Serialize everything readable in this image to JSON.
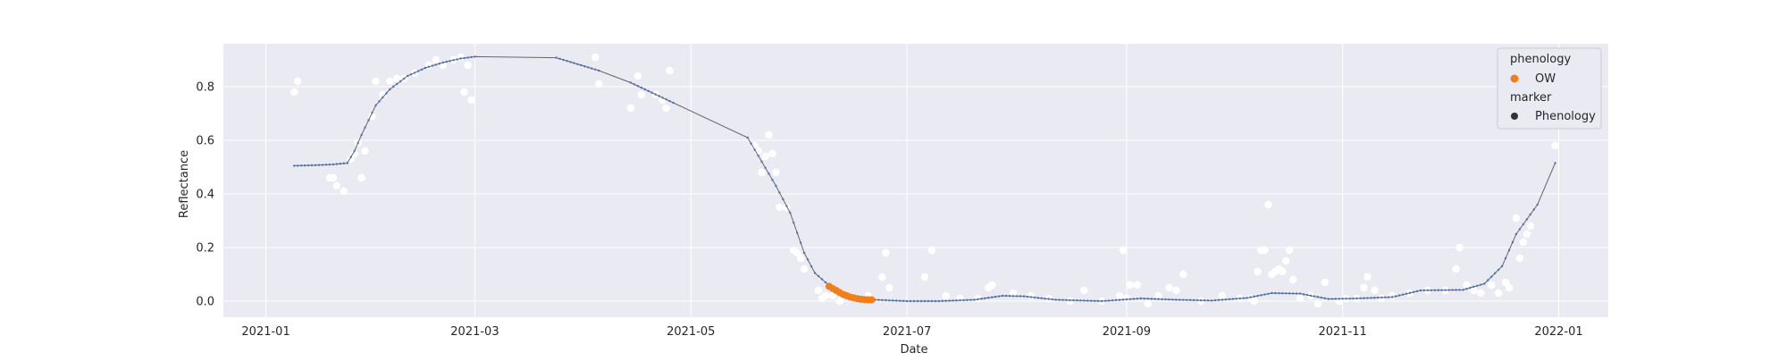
{
  "chart_data": {
    "type": "scatter",
    "xlabel": "Date",
    "ylabel": "Reflectance",
    "xlim": [
      "2020-12-20",
      "2022-01-15"
    ],
    "ylim": [
      -0.06,
      0.96
    ],
    "x_ticks": [
      "2021-01",
      "2021-03",
      "2021-05",
      "2021-07",
      "2021-09",
      "2021-11",
      "2022-01"
    ],
    "y_ticks": [
      "0.0",
      "0.2",
      "0.4",
      "0.6",
      "0.8"
    ],
    "y_tick_values": [
      0.0,
      0.2,
      0.4,
      0.6,
      0.8
    ],
    "grid": true,
    "legend_position": "top-right",
    "legend": {
      "title_1": "phenology",
      "entry_1": "OW",
      "title_2": "marker",
      "entry_2": "Phenology"
    },
    "colors": {
      "background": "#eaeaf2",
      "grid": "#ffffff",
      "raw_points": "#ffffff",
      "fit_line": "#666666",
      "fit_markers": "#4c72b0",
      "ow": "#ee7f1c",
      "legend_marker": "#333333"
    },
    "series": [
      {
        "id": "observations",
        "role": "raw reflectance observations",
        "points": [
          [
            "2021-01-09",
            0.78
          ],
          [
            "2021-01-10",
            0.82
          ],
          [
            "2021-01-19",
            0.46
          ],
          [
            "2021-01-20",
            0.46
          ],
          [
            "2021-01-21",
            0.43
          ],
          [
            "2021-01-23",
            0.41
          ],
          [
            "2021-01-25",
            0.53
          ],
          [
            "2021-01-26",
            0.55
          ],
          [
            "2021-01-27",
            0.59
          ],
          [
            "2021-01-28",
            0.46
          ],
          [
            "2021-01-29",
            0.56
          ],
          [
            "2021-01-31",
            0.69
          ],
          [
            "2021-02-01",
            0.82
          ],
          [
            "2021-02-03",
            0.77
          ],
          [
            "2021-02-05",
            0.82
          ],
          [
            "2021-02-07",
            0.83
          ],
          [
            "2021-02-09",
            0.83
          ],
          [
            "2021-02-12",
            0.85
          ],
          [
            "2021-02-16",
            0.88
          ],
          [
            "2021-02-18",
            0.9
          ],
          [
            "2021-02-20",
            0.88
          ],
          [
            "2021-02-23",
            0.9
          ],
          [
            "2021-02-25",
            0.91
          ],
          [
            "2021-02-26",
            0.78
          ],
          [
            "2021-02-27",
            0.88
          ],
          [
            "2021-02-28",
            0.75
          ],
          [
            "2021-04-04",
            0.91
          ],
          [
            "2021-04-05",
            0.81
          ],
          [
            "2021-04-14",
            0.72
          ],
          [
            "2021-04-16",
            0.84
          ],
          [
            "2021-04-17",
            0.77
          ],
          [
            "2021-04-21",
            0.77
          ],
          [
            "2021-04-23",
            0.75
          ],
          [
            "2021-04-24",
            0.72
          ],
          [
            "2021-04-25",
            0.86
          ],
          [
            "2021-05-19",
            0.58
          ],
          [
            "2021-05-20",
            0.56
          ],
          [
            "2021-05-21",
            0.48
          ],
          [
            "2021-05-22",
            0.54
          ],
          [
            "2021-05-23",
            0.62
          ],
          [
            "2021-05-24",
            0.55
          ],
          [
            "2021-05-25",
            0.48
          ],
          [
            "2021-05-26",
            0.35
          ],
          [
            "2021-05-28",
            0.35
          ],
          [
            "2021-05-30",
            0.19
          ],
          [
            "2021-05-31",
            0.18
          ],
          [
            "2021-06-01",
            0.16
          ],
          [
            "2021-06-02",
            0.12
          ],
          [
            "2021-06-06",
            0.04
          ],
          [
            "2021-06-07",
            0.01
          ],
          [
            "2021-06-08",
            0.02
          ],
          [
            "2021-06-10",
            0.02
          ],
          [
            "2021-06-12",
            0.0
          ],
          [
            "2021-06-20",
            0.02
          ],
          [
            "2021-06-24",
            0.09
          ],
          [
            "2021-06-25",
            0.18
          ],
          [
            "2021-06-26",
            0.05
          ],
          [
            "2021-07-06",
            0.09
          ],
          [
            "2021-07-08",
            0.19
          ],
          [
            "2021-07-12",
            0.02
          ],
          [
            "2021-07-16",
            0.01
          ],
          [
            "2021-07-21",
            0.01
          ],
          [
            "2021-07-24",
            0.05
          ],
          [
            "2021-07-25",
            0.06
          ],
          [
            "2021-07-31",
            0.03
          ],
          [
            "2021-08-05",
            0.02
          ],
          [
            "2021-08-10",
            0.01
          ],
          [
            "2021-08-16",
            0.0
          ],
          [
            "2021-08-20",
            0.04
          ],
          [
            "2021-08-25",
            0.0
          ],
          [
            "2021-08-30",
            0.02
          ],
          [
            "2021-08-31",
            0.19
          ],
          [
            "2021-09-01",
            0.01
          ],
          [
            "2021-09-02",
            0.06
          ],
          [
            "2021-09-04",
            0.06
          ],
          [
            "2021-09-07",
            -0.01
          ],
          [
            "2021-09-10",
            0.02
          ],
          [
            "2021-09-13",
            0.05
          ],
          [
            "2021-09-15",
            0.04
          ],
          [
            "2021-09-17",
            0.1
          ],
          [
            "2021-09-22",
            0.0
          ],
          [
            "2021-09-28",
            0.02
          ],
          [
            "2021-10-03",
            0.01
          ],
          [
            "2021-10-06",
            0.01
          ],
          [
            "2021-10-07",
            0.0
          ],
          [
            "2021-10-08",
            0.11
          ],
          [
            "2021-10-09",
            0.19
          ],
          [
            "2021-10-10",
            0.19
          ],
          [
            "2021-10-11",
            0.36
          ],
          [
            "2021-10-12",
            0.1
          ],
          [
            "2021-10-13",
            0.11
          ],
          [
            "2021-10-14",
            0.12
          ],
          [
            "2021-10-15",
            0.11
          ],
          [
            "2021-10-16",
            0.15
          ],
          [
            "2021-10-17",
            0.19
          ],
          [
            "2021-10-18",
            0.08
          ],
          [
            "2021-10-20",
            0.01
          ],
          [
            "2021-10-23",
            0.02
          ],
          [
            "2021-10-25",
            -0.01
          ],
          [
            "2021-10-27",
            0.07
          ],
          [
            "2021-10-31",
            0.0
          ],
          [
            "2021-11-02",
            0.01
          ],
          [
            "2021-11-05",
            0.01
          ],
          [
            "2021-11-07",
            0.05
          ],
          [
            "2021-11-08",
            0.09
          ],
          [
            "2021-11-10",
            0.04
          ],
          [
            "2021-11-12",
            0.01
          ],
          [
            "2021-11-15",
            0.02
          ],
          [
            "2021-11-20",
            0.03
          ],
          [
            "2021-11-25",
            0.04
          ],
          [
            "2021-11-30",
            0.04
          ],
          [
            "2021-12-03",
            0.12
          ],
          [
            "2021-12-04",
            0.2
          ],
          [
            "2021-12-06",
            0.06
          ],
          [
            "2021-12-08",
            0.04
          ],
          [
            "2021-12-10",
            0.03
          ],
          [
            "2021-12-13",
            0.06
          ],
          [
            "2021-12-15",
            0.03
          ],
          [
            "2021-12-17",
            0.07
          ],
          [
            "2021-12-18",
            0.05
          ],
          [
            "2021-12-20",
            0.31
          ],
          [
            "2021-12-21",
            0.16
          ],
          [
            "2021-12-22",
            0.22
          ],
          [
            "2021-12-23",
            0.25
          ],
          [
            "2021-12-24",
            0.28
          ],
          [
            "2021-12-31",
            0.58
          ]
        ]
      },
      {
        "id": "fit",
        "role": "fitted reflectance curve with daily markers",
        "marker_step_days": 1,
        "gaps": [
          [
            "2021-03-01",
            "2021-03-24"
          ],
          [
            "2021-04-05",
            "2021-04-14"
          ],
          [
            "2021-04-26",
            "2021-05-17"
          ],
          [
            "2021-12-26",
            "2021-12-31"
          ]
        ],
        "knots": [
          [
            "2021-01-09",
            0.505
          ],
          [
            "2021-01-15",
            0.507
          ],
          [
            "2021-01-20",
            0.51
          ],
          [
            "2021-01-24",
            0.515
          ],
          [
            "2021-01-26",
            0.56
          ],
          [
            "2021-01-28",
            0.62
          ],
          [
            "2021-02-01",
            0.73
          ],
          [
            "2021-02-05",
            0.79
          ],
          [
            "2021-02-10",
            0.84
          ],
          [
            "2021-02-15",
            0.87
          ],
          [
            "2021-02-20",
            0.89
          ],
          [
            "2021-02-25",
            0.905
          ],
          [
            "2021-03-01",
            0.912
          ],
          [
            "2021-03-24",
            0.908
          ],
          [
            "2021-03-26",
            0.9
          ],
          [
            "2021-04-05",
            0.86
          ],
          [
            "2021-04-14",
            0.815
          ],
          [
            "2021-04-26",
            0.74
          ],
          [
            "2021-05-17",
            0.61
          ],
          [
            "2021-05-21",
            0.52
          ],
          [
            "2021-05-25",
            0.43
          ],
          [
            "2021-05-29",
            0.33
          ],
          [
            "2021-06-02",
            0.18
          ],
          [
            "2021-06-05",
            0.105
          ],
          [
            "2021-06-08",
            0.07
          ],
          [
            "2021-06-11",
            0.045
          ],
          [
            "2021-06-14",
            0.025
          ],
          [
            "2021-06-18",
            0.01
          ],
          [
            "2021-06-22",
            0.005
          ],
          [
            "2021-07-01",
            0.0
          ],
          [
            "2021-07-10",
            0.0
          ],
          [
            "2021-07-20",
            0.005
          ],
          [
            "2021-07-28",
            0.02
          ],
          [
            "2021-08-03",
            0.018
          ],
          [
            "2021-08-12",
            0.005
          ],
          [
            "2021-08-25",
            0.0
          ],
          [
            "2021-09-05",
            0.01
          ],
          [
            "2021-09-15",
            0.005
          ],
          [
            "2021-09-25",
            0.002
          ],
          [
            "2021-10-05",
            0.012
          ],
          [
            "2021-10-12",
            0.03
          ],
          [
            "2021-10-20",
            0.028
          ],
          [
            "2021-10-28",
            0.008
          ],
          [
            "2021-11-05",
            0.01
          ],
          [
            "2021-11-15",
            0.015
          ],
          [
            "2021-11-23",
            0.04
          ],
          [
            "2021-12-05",
            0.042
          ],
          [
            "2021-12-11",
            0.065
          ],
          [
            "2021-12-16",
            0.13
          ],
          [
            "2021-12-20",
            0.25
          ],
          [
            "2021-12-26",
            0.36
          ],
          [
            "2021-12-31",
            0.515
          ]
        ]
      },
      {
        "id": "ow",
        "name": "OW",
        "role": "open-water phenology phase",
        "x_start": "2021-06-09",
        "x_end": "2021-06-21",
        "points": [
          [
            "2021-06-09",
            0.055
          ],
          [
            "2021-06-10",
            0.047
          ],
          [
            "2021-06-11",
            0.04
          ],
          [
            "2021-06-12",
            0.032
          ],
          [
            "2021-06-13",
            0.025
          ],
          [
            "2021-06-14",
            0.02
          ],
          [
            "2021-06-15",
            0.015
          ],
          [
            "2021-06-16",
            0.012
          ],
          [
            "2021-06-17",
            0.009
          ],
          [
            "2021-06-18",
            0.007
          ],
          [
            "2021-06-19",
            0.006
          ],
          [
            "2021-06-20",
            0.005
          ],
          [
            "2021-06-21",
            0.005
          ]
        ]
      }
    ]
  }
}
